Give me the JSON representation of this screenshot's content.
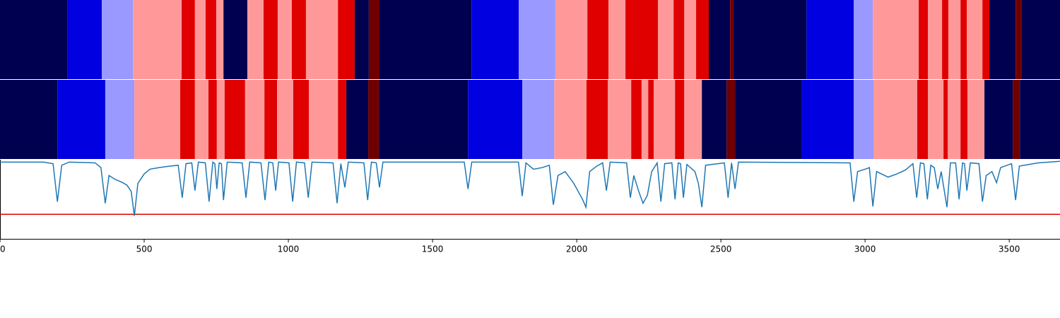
{
  "chart_data": {
    "type": "segmentation",
    "xlim": [
      0,
      3676
    ],
    "xticks": [
      0,
      500,
      1000,
      1500,
      2000,
      2500,
      3000,
      3500
    ],
    "bands": [
      {
        "bounds": [
          0,
          233,
          353,
          461,
          630,
          676,
          713,
          750,
          775,
          858,
          914,
          963,
          1012,
          1061,
          1172,
          1230,
          1279,
          1316,
          1635,
          1799,
          1926,
          2037,
          2110,
          2169,
          2282,
          2336,
          2373,
          2414,
          2458,
          2532,
          2544,
          2797,
          2961,
          3027,
          3186,
          3218,
          3267,
          3289,
          3331,
          3353,
          3407,
          3431,
          3522,
          3542,
          3676
        ],
        "colors": [
          "#000050",
          "#0000e0",
          "#9999ff",
          "#ff9999",
          "#e00000",
          "#ff9999",
          "#e00000",
          "#ff9999",
          "#000050",
          "#ff9999",
          "#e00000",
          "#ff9999",
          "#e00000",
          "#ff9999",
          "#e00000",
          "#000050",
          "#700000",
          "#000050",
          "#0000e0",
          "#9999ff",
          "#ff9999",
          "#e00000",
          "#ff9999",
          "#e00000",
          "#ff9999",
          "#e00000",
          "#ff9999",
          "#e00000",
          "#000050",
          "#700000",
          "#000050",
          "#0000e0",
          "#9999ff",
          "#ff9999",
          "#e00000",
          "#ff9999",
          "#e00000",
          "#ff9999",
          "#e00000",
          "#ff9999",
          "#e00000",
          "#000050",
          "#700000",
          "#000050"
        ]
      },
      {
        "bounds": [
          0,
          199,
          365,
          466,
          625,
          676,
          723,
          752,
          779,
          850,
          917,
          961,
          1017,
          1071,
          1172,
          1201,
          1277,
          1314,
          1623,
          1811,
          1922,
          2034,
          2108,
          2189,
          2225,
          2248,
          2267,
          2341,
          2373,
          2434,
          2520,
          2549,
          2779,
          2961,
          3029,
          3181,
          3218,
          3272,
          3287,
          3331,
          3355,
          3414,
          3512,
          3537,
          3676
        ],
        "colors": [
          "#000050",
          "#0000e0",
          "#9999ff",
          "#ff9999",
          "#e00000",
          "#ff9999",
          "#e00000",
          "#ff9999",
          "#e00000",
          "#ff9999",
          "#e00000",
          "#ff9999",
          "#e00000",
          "#ff9999",
          "#e00000",
          "#000050",
          "#700000",
          "#000050",
          "#0000e0",
          "#9999ff",
          "#ff9999",
          "#e00000",
          "#ff9999",
          "#e00000",
          "#ff9999",
          "#e00000",
          "#ff9999",
          "#e00000",
          "#ff9999",
          "#000050",
          "#700000",
          "#000050",
          "#0000e0",
          "#9999ff",
          "#ff9999",
          "#e00000",
          "#ff9999",
          "#e00000",
          "#ff9999",
          "#e00000",
          "#ff9999",
          "#000050",
          "#700000",
          "#000050"
        ]
      }
    ],
    "ylim": [
      0,
      1
    ],
    "x": [
      0,
      150,
      184,
      199,
      214,
      240,
      330,
      350,
      365,
      378,
      400,
      420,
      440,
      455,
      466,
      478,
      500,
      520,
      550,
      590,
      618,
      632,
      645,
      665,
      676,
      688,
      712,
      725,
      738,
      745,
      752,
      760,
      768,
      775,
      788,
      840,
      853,
      866,
      905,
      919,
      932,
      946,
      956,
      966,
      1002,
      1015,
      1028,
      1056,
      1069,
      1082,
      1155,
      1169,
      1182,
      1196,
      1208,
      1262,
      1275,
      1288,
      1305,
      1316,
      1328,
      1610,
      1623,
      1636,
      1798,
      1811,
      1824,
      1850,
      1880,
      1905,
      1919,
      1935,
      1960,
      1990,
      2005,
      2020,
      2032,
      2045,
      2070,
      2090,
      2103,
      2116,
      2173,
      2186,
      2198,
      2215,
      2230,
      2245,
      2260,
      2279,
      2292,
      2305,
      2330,
      2341,
      2352,
      2360,
      2370,
      2382,
      2410,
      2422,
      2434,
      2447,
      2512,
      2525,
      2537,
      2549,
      2561,
      2948,
      2961,
      2974,
      3000,
      3015,
      3027,
      3040,
      3080,
      3110,
      3140,
      3166,
      3179,
      3192,
      3204,
      3216,
      3228,
      3240,
      3252,
      3264,
      3284,
      3296,
      3314,
      3326,
      3338,
      3345,
      3353,
      3365,
      3395,
      3407,
      3420,
      3440,
      3456,
      3470,
      3508,
      3522,
      3535,
      3600,
      3676
    ],
    "series": [
      {
        "color": "#1f77b4",
        "values": [
          0.97,
          0.97,
          0.95,
          0.47,
          0.93,
          0.97,
          0.96,
          0.9,
          0.45,
          0.8,
          0.75,
          0.72,
          0.68,
          0.6,
          0.29,
          0.7,
          0.82,
          0.88,
          0.9,
          0.92,
          0.93,
          0.52,
          0.95,
          0.96,
          0.61,
          0.97,
          0.96,
          0.47,
          0.97,
          0.95,
          0.63,
          0.96,
          0.95,
          0.49,
          0.97,
          0.96,
          0.52,
          0.97,
          0.96,
          0.49,
          0.97,
          0.96,
          0.61,
          0.97,
          0.96,
          0.47,
          0.97,
          0.96,
          0.52,
          0.97,
          0.96,
          0.45,
          0.95,
          0.65,
          0.97,
          0.96,
          0.49,
          0.97,
          0.96,
          0.65,
          0.97,
          0.97,
          0.63,
          0.97,
          0.97,
          0.54,
          0.96,
          0.88,
          0.9,
          0.93,
          0.43,
          0.8,
          0.85,
          0.7,
          0.6,
          0.5,
          0.4,
          0.85,
          0.92,
          0.96,
          0.61,
          0.97,
          0.96,
          0.52,
          0.8,
          0.6,
          0.45,
          0.55,
          0.85,
          0.96,
          0.47,
          0.95,
          0.96,
          0.5,
          0.96,
          0.95,
          0.52,
          0.94,
          0.85,
          0.7,
          0.4,
          0.93,
          0.96,
          0.52,
          0.96,
          0.63,
          0.97,
          0.96,
          0.47,
          0.85,
          0.88,
          0.9,
          0.41,
          0.85,
          0.78,
          0.82,
          0.87,
          0.95,
          0.52,
          0.96,
          0.95,
          0.5,
          0.93,
          0.9,
          0.63,
          0.85,
          0.4,
          0.96,
          0.96,
          0.5,
          0.96,
          0.95,
          0.61,
          0.96,
          0.95,
          0.47,
          0.8,
          0.85,
          0.71,
          0.9,
          0.95,
          0.49,
          0.92,
          0.96,
          0.98
        ]
      }
    ],
    "threshold": {
      "value": 0.31,
      "color": "#e00000"
    }
  }
}
